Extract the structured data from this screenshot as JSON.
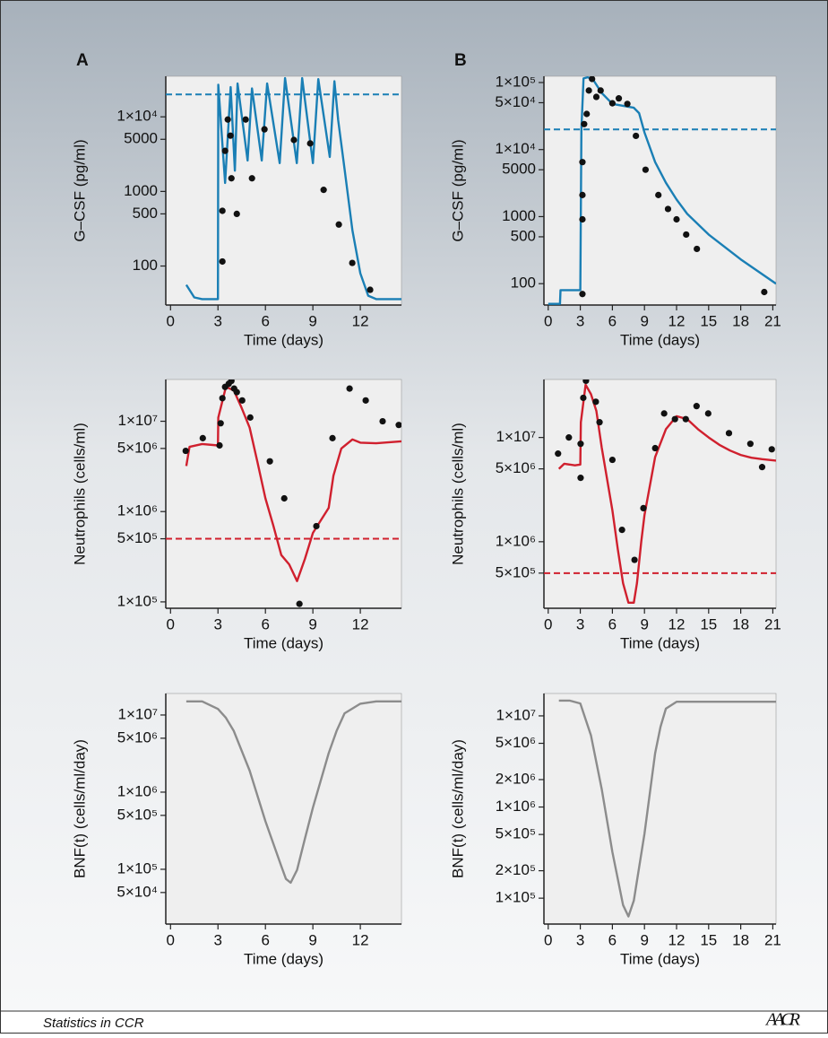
{
  "chart_data": [
    {
      "type": "line",
      "panel_label": "A",
      "ylabel": "G–CSF (pg/ml)",
      "xlabel": "Time (days)",
      "y_scale": "log",
      "xlim": [
        -0.3,
        14.6
      ],
      "xticks": [
        0,
        3,
        6,
        9,
        12
      ],
      "ylim": [
        30,
        35000
      ],
      "yticks": [
        100,
        500,
        1000,
        5000,
        {
          "value": 10000,
          "label": "1×10⁴"
        }
      ],
      "threshold": {
        "value": 20000,
        "color": "#1a7fb5"
      },
      "series": [
        {
          "style": "line",
          "color": "#1a7fb5",
          "x": [
            1,
            1.5,
            2,
            3,
            3.02,
            3.45,
            3.8,
            4.07,
            4.24,
            4.87,
            5.15,
            5.77,
            6.11,
            6.9,
            7.24,
            7.98,
            8.32,
            9.0,
            9.34,
            10.07,
            10.36,
            10.6,
            11,
            11.5,
            12,
            12.5,
            13,
            14.6
          ],
          "values": [
            56,
            38,
            36,
            36,
            27000,
            1300,
            25000,
            1900,
            28000,
            2600,
            24000,
            2600,
            28000,
            2400,
            33000,
            2400,
            33000,
            2400,
            32000,
            2900,
            30000,
            9000,
            2000,
            300,
            80,
            40,
            36,
            36
          ]
        },
        {
          "style": "points",
          "color": "#111111",
          "x": [
            3.28,
            3.28,
            3.45,
            3.62,
            3.79,
            3.85,
            4.19,
            4.75,
            5.15,
            5.94,
            7.8,
            8.83,
            9.68,
            10.64,
            11.49,
            12.62
          ],
          "values": [
            550,
            115,
            3500,
            9200,
            5600,
            1500,
            500,
            9200,
            1500,
            6800,
            4900,
            4400,
            1050,
            360,
            110,
            48
          ]
        }
      ]
    },
    {
      "type": "line",
      "panel_label": "B",
      "ylabel": "G–CSF (pg/ml)",
      "xlabel": "Time (days)",
      "y_scale": "log",
      "xlim": [
        -0.4,
        21.3
      ],
      "xticks": [
        0,
        3,
        6,
        9,
        12,
        15,
        18,
        21
      ],
      "ylim": [
        48,
        124000
      ],
      "yticks": [
        100,
        500,
        1000,
        5000,
        {
          "value": 10000,
          "label": "1×10⁴"
        },
        {
          "value": 50000,
          "label": "5×10⁴"
        },
        {
          "value": 100000,
          "label": "1×10⁵"
        }
      ],
      "threshold": {
        "value": 20000,
        "color": "#1a7fb5"
      },
      "series": [
        {
          "style": "line",
          "color": "#1a7fb5",
          "x": [
            0,
            1.1,
            1.15,
            3.0,
            3.1,
            3.3,
            3.7,
            4.2,
            5,
            6,
            7,
            8,
            8.5,
            9,
            10,
            11,
            12,
            13,
            15,
            18,
            21.3
          ],
          "values": [
            50,
            50,
            80,
            80,
            20000,
            115000,
            120000,
            110000,
            70000,
            48000,
            45000,
            42000,
            35000,
            18000,
            6500,
            3200,
            1800,
            1100,
            540,
            230,
            100
          ]
        },
        {
          "style": "points",
          "color": "#111111",
          "x": [
            3.2,
            3.2,
            3.2,
            3.2,
            3.36,
            3.6,
            3.8,
            4.1,
            4.5,
            4.9,
            6.0,
            6.6,
            7.4,
            8.2,
            9.1,
            10.3,
            11.2,
            12.0,
            12.9,
            13.9,
            20.2
          ],
          "values": [
            70,
            910,
            2100,
            6500,
            24000,
            34000,
            76000,
            113000,
            61000,
            76000,
            49000,
            58000,
            48000,
            16000,
            5000,
            2100,
            1300,
            910,
            540,
            330,
            75
          ]
        }
      ]
    },
    {
      "type": "line",
      "ylabel": "Neutrophils (cells/ml)",
      "xlabel": "Time (days)",
      "y_scale": "log",
      "xlim": [
        -0.3,
        14.6
      ],
      "xticks": [
        0,
        3,
        6,
        9,
        12
      ],
      "ylim": [
        85000,
        29000000
      ],
      "yticks": [
        {
          "value": 100000,
          "label": "1×10⁵"
        },
        {
          "value": 500000,
          "label": "5×10⁵"
        },
        {
          "value": 1000000,
          "label": "1×10⁶"
        },
        {
          "value": 5000000,
          "label": "5×10⁶"
        },
        {
          "value": 10000000,
          "label": "1×10⁷"
        }
      ],
      "threshold": {
        "value": 500000,
        "color": "#d0202e"
      },
      "series": [
        {
          "style": "line",
          "color": "#d0202e",
          "x": [
            1,
            1.2,
            2,
            3,
            3.02,
            3.5,
            4,
            4.5,
            5,
            5.5,
            6,
            6.5,
            7,
            7.5,
            8,
            8.5,
            9,
            9.5,
            10,
            10.3,
            10.8,
            11.5,
            12,
            13,
            14.6
          ],
          "values": [
            3200000,
            5200000,
            5600000,
            5400000,
            11000000,
            24000000,
            22000000,
            14000000,
            8500000,
            3500000,
            1400000,
            700000,
            330000,
            260000,
            170000,
            300000,
            580000,
            800000,
            1100000,
            2500000,
            5000000,
            6300000,
            5800000,
            5700000,
            6000000
          ]
        },
        {
          "style": "points",
          "color": "#111111",
          "x": [
            0.96,
            2.04,
            3.1,
            3.17,
            3.28,
            3.45,
            3.68,
            3.85,
            4.02,
            4.19,
            4.53,
            5.04,
            6.28,
            7.19,
            8.15,
            9.22,
            10.24,
            11.32,
            12.34,
            13.41,
            14.43
          ],
          "values": [
            4700000,
            6500000,
            5400000,
            9500000,
            18000000,
            24000000,
            26000000,
            28000000,
            23000000,
            21000000,
            17000000,
            11000000,
            3600000,
            1400000,
            95000,
            690000,
            6500000,
            23000000,
            17000000,
            10000000,
            9100000
          ]
        }
      ]
    },
    {
      "type": "line",
      "ylabel": "Neutrophils (cells/ml)",
      "xlabel": "Time (days)",
      "y_scale": "log",
      "xlim": [
        -0.4,
        21.3
      ],
      "xticks": [
        0,
        3,
        6,
        9,
        12,
        15,
        18,
        21
      ],
      "ylim": [
        230000,
        36000000
      ],
      "yticks": [
        {
          "value": 500000,
          "label": "5×10⁵"
        },
        {
          "value": 1000000,
          "label": "1×10⁶"
        },
        {
          "value": 5000000,
          "label": "5×10⁶"
        },
        {
          "value": 10000000,
          "label": "1×10⁷"
        }
      ],
      "threshold": {
        "value": 500000,
        "color": "#d0202e"
      },
      "series": [
        {
          "style": "line",
          "color": "#d0202e",
          "x": [
            1,
            1.5,
            2.5,
            3,
            3.05,
            3.5,
            4,
            4.5,
            5,
            6,
            6.5,
            7,
            7.5,
            8,
            8.3,
            8.7,
            9,
            10,
            11,
            12,
            13,
            14,
            15,
            16,
            17,
            18,
            19,
            20,
            21.3
          ],
          "values": [
            5000000,
            5600000,
            5400000,
            5500000,
            14000000,
            32000000,
            26000000,
            18000000,
            8000000,
            2000000,
            850000,
            400000,
            260000,
            260000,
            400000,
            1000000,
            1800000,
            6500000,
            12000000,
            16000000,
            15000000,
            12000000,
            10000000,
            8500000,
            7500000,
            6800000,
            6400000,
            6200000,
            6000000
          ]
        },
        {
          "style": "points",
          "color": "#111111",
          "x": [
            0.92,
            1.93,
            3.03,
            3.03,
            3.28,
            3.53,
            4.45,
            4.8,
            6.0,
            6.9,
            8.07,
            8.9,
            10.0,
            10.84,
            11.85,
            12.86,
            13.87,
            14.96,
            16.9,
            18.9,
            20.0,
            20.9
          ],
          "values": [
            7000000,
            10000000,
            4100000,
            8700000,
            24000000,
            35000000,
            22000000,
            14000000,
            6100000,
            1300000,
            670000,
            2100000,
            7900000,
            17000000,
            15000000,
            15000000,
            20000000,
            17000000,
            11000000,
            8700000,
            5200000,
            7700000
          ]
        }
      ]
    },
    {
      "type": "line",
      "ylabel": "BNF(t) (cells/ml/day)",
      "xlabel": "Time (days)",
      "y_scale": "log",
      "xlim": [
        -0.3,
        14.6
      ],
      "xticks": [
        0,
        3,
        6,
        9,
        12
      ],
      "ylim": [
        19500,
        19000000
      ],
      "yticks": [
        {
          "value": 50000,
          "label": "5×10⁴"
        },
        {
          "value": 100000,
          "label": "1×10⁵"
        },
        {
          "value": 500000,
          "label": "5×10⁵"
        },
        {
          "value": 1000000,
          "label": "1×10⁶"
        },
        {
          "value": 5000000,
          "label": "5×10⁶"
        },
        {
          "value": 10000000,
          "label": "1×10⁷"
        }
      ],
      "series": [
        {
          "style": "line",
          "color": "#8c8c8c",
          "x": [
            1,
            2,
            3,
            3.5,
            4,
            5,
            6,
            7,
            7.3,
            7.6,
            8,
            8.5,
            9,
            10,
            10.5,
            11,
            12,
            13,
            14.6
          ],
          "values": [
            15000000,
            15000000,
            12000000,
            9200000,
            6200000,
            1900000,
            420000,
            110000,
            75000,
            67000,
            98000,
            250000,
            630000,
            3200000,
            6200000,
            10500000,
            14000000,
            15000000,
            15000000
          ]
        }
      ]
    },
    {
      "type": "line",
      "ylabel": "BNF(t) (cells/ml/day)",
      "xlabel": "Time (days)",
      "y_scale": "log",
      "xlim": [
        -0.4,
        21.3
      ],
      "xticks": [
        0,
        3,
        6,
        9,
        12,
        15,
        18,
        21
      ],
      "ylim": [
        52000,
        17600000
      ],
      "yticks": [
        {
          "value": 100000,
          "label": "1×10⁵"
        },
        {
          "value": 200000,
          "label": "2×10⁵"
        },
        {
          "value": 500000,
          "label": "5×10⁵"
        },
        {
          "value": 1000000,
          "label": "1×10⁶"
        },
        {
          "value": 2000000,
          "label": "2×10⁶"
        },
        {
          "value": 5000000,
          "label": "5×10⁶"
        },
        {
          "value": 10000000,
          "label": "1×10⁷"
        }
      ],
      "series": [
        {
          "style": "line",
          "color": "#8c8c8c",
          "x": [
            1,
            2,
            3,
            4,
            5,
            6,
            7,
            7.5,
            8,
            9,
            10,
            10.5,
            11,
            12,
            21.3
          ],
          "values": [
            14700000,
            14700000,
            13700000,
            6100000,
            1570000,
            320000,
            84000,
            63000,
            94000,
            510000,
            3900000,
            7600000,
            12000000,
            14300000,
            14300000
          ]
        }
      ]
    }
  ],
  "footer": {
    "text": "Statistics in CCR",
    "logo": "AACR"
  }
}
